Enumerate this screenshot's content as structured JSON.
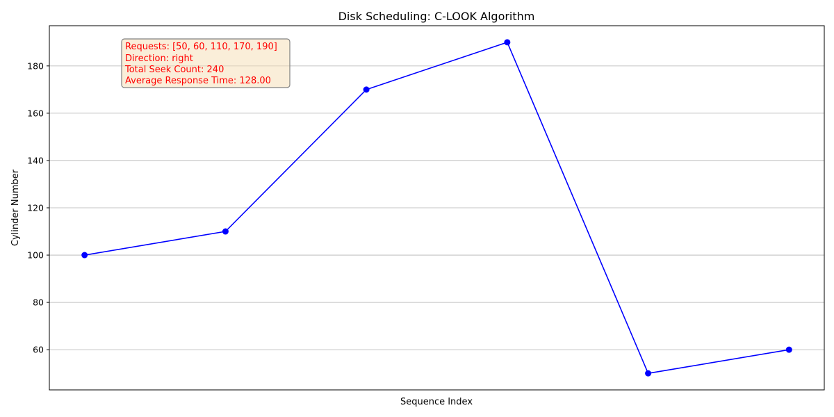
{
  "chart_data": {
    "type": "line",
    "title": "Disk Scheduling: C-LOOK Algorithm",
    "xlabel": "Sequence Index",
    "ylabel": "Cylinder Number",
    "x": [
      0,
      1,
      2,
      3,
      4,
      5
    ],
    "series": [
      {
        "values": [
          100,
          110,
          170,
          190,
          50,
          60
        ],
        "color": "#0000ff",
        "marker": "circle"
      }
    ],
    "xlim": [
      -0.25,
      5.25
    ],
    "ylim": [
      43,
      197
    ],
    "yticks": [
      60,
      80,
      100,
      120,
      140,
      160,
      180
    ],
    "xticks_visible": false,
    "grid": "y-only",
    "annotation": {
      "lines": [
        "Requests: [50, 60, 110, 170, 190]",
        "Direction: right",
        "Total Seek Count: 240",
        "Average Response Time: 128.00"
      ],
      "text_color": "#ff0000",
      "box_fill": "#f5deb3",
      "placement": "top-left"
    }
  }
}
